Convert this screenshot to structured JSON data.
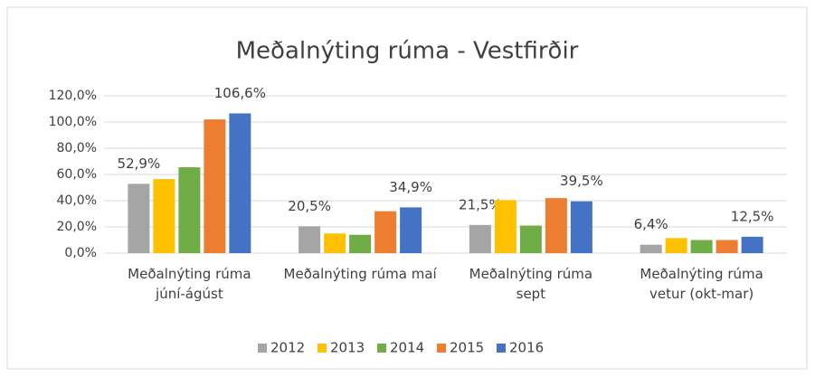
{
  "chart_data": {
    "type": "bar",
    "title": "Meðalnýting rúma - Vestfirðir",
    "categories": [
      "Meðalnýting rúma júní-ágúst",
      "Meðalnýting rúma maí",
      "Meðalnýting rúma sept",
      "Meðalnýting rúma vetur (okt-mar)"
    ],
    "series": [
      {
        "name": "2012",
        "color": "#a5a5a5",
        "values": [
          52.9,
          20.5,
          21.5,
          6.4
        ],
        "value_labels": [
          "52,9%",
          "20,5%",
          "21,5%",
          "6,4%"
        ]
      },
      {
        "name": "2013",
        "color": "#ffc000",
        "values": [
          56.5,
          15,
          40.5,
          11.5
        ]
      },
      {
        "name": "2014",
        "color": "#70ad47",
        "values": [
          65.5,
          14,
          21,
          10
        ]
      },
      {
        "name": "2015",
        "color": "#ed7d31",
        "values": [
          102,
          32,
          42,
          10
        ]
      },
      {
        "name": "2016",
        "color": "#4472c4",
        "values": [
          106.6,
          34.9,
          39.5,
          12.5
        ],
        "value_labels": [
          "106,6%",
          "34,9%",
          "39,5%",
          "12,5%"
        ]
      }
    ],
    "ylim": [
      0,
      120
    ],
    "yticks": [
      {
        "value": 0,
        "label": "0,0%"
      },
      {
        "value": 20,
        "label": "20,0%"
      },
      {
        "value": 40,
        "label": "40,0%"
      },
      {
        "value": 60,
        "label": "60,0%"
      },
      {
        "value": 80,
        "label": "80,0%"
      },
      {
        "value": 100,
        "label": "100,0%"
      },
      {
        "value": 120,
        "label": "120,0%"
      }
    ],
    "grid": true,
    "legend": "bottom"
  }
}
